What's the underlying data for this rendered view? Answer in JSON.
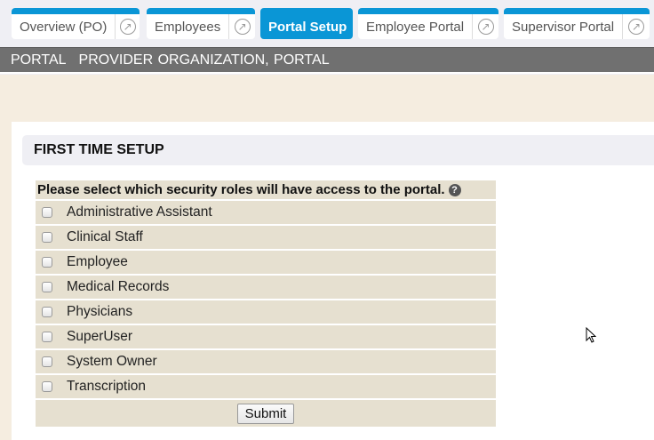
{
  "tabs": [
    {
      "label": "Overview (PO)",
      "external": true
    },
    {
      "label": "Employees",
      "external": true
    },
    {
      "label": "Portal Setup",
      "active": true
    },
    {
      "label": "Employee Portal",
      "external": true
    },
    {
      "label": "Supervisor Portal",
      "external": true
    }
  ],
  "breadcrumb": {
    "module": "PORTAL",
    "context": "PROVIDER ORGANIZATION, PORTAL"
  },
  "section": {
    "title": "FIRST TIME SETUP"
  },
  "form": {
    "prompt": "Please select which security roles will have access to the portal.",
    "help_icon": "question-circle-icon",
    "roles": [
      {
        "label": "Administrative Assistant",
        "checked": false
      },
      {
        "label": "Clinical Staff",
        "checked": false
      },
      {
        "label": "Employee",
        "checked": false
      },
      {
        "label": "Medical Records",
        "checked": false
      },
      {
        "label": "Physicians",
        "checked": false
      },
      {
        "label": "SuperUser",
        "checked": false
      },
      {
        "label": "System Owner",
        "checked": false
      },
      {
        "label": "Transcription",
        "checked": false
      }
    ],
    "submit_label": "Submit"
  },
  "colors": {
    "accent": "#0a96d6",
    "bar": "#707070",
    "row": "#e6e0d0"
  }
}
